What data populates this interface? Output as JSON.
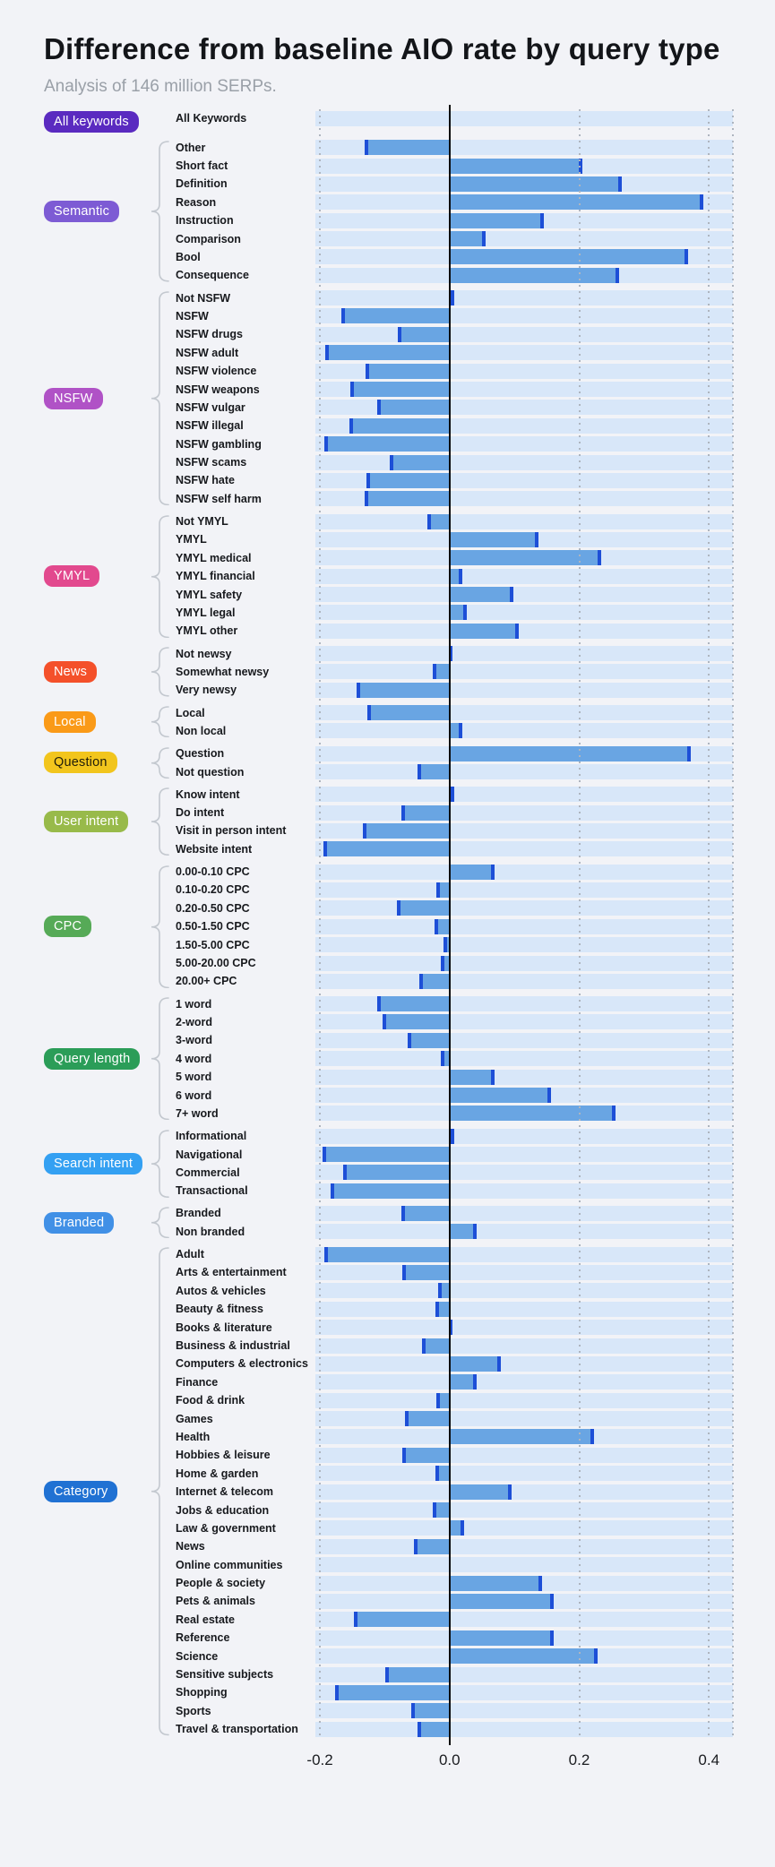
{
  "chart_data": {
    "type": "bar",
    "orientation": "horizontal",
    "title": "Difference from baseline AIO rate by query type",
    "subtitle": "Analysis of 146 million SERPs.",
    "axis": {
      "domain": [
        -0.207,
        0.437
      ],
      "ticks": [
        -0.2,
        0.0,
        0.2,
        0.4
      ],
      "tick_labels": [
        "-0.2",
        "0.0",
        "0.2",
        "0.4"
      ],
      "baseline": 0.0,
      "grid": "dotted-vertical"
    },
    "colors": {
      "background": "#f2f3f7",
      "track": "#d8e7f9",
      "bar": "#69a5e3",
      "bar_cap": "#1d4fd7",
      "baseline": "#0b0b0d",
      "gridline": "#aeb5bf",
      "brace": "#c3c8cf",
      "label_text": "#17191d"
    },
    "groups": [
      {
        "label": "All keywords",
        "badge_color": "#5a2ac0",
        "badge_text_color": "#ffffff",
        "rows": [
          {
            "label": "All Keywords",
            "value": 0.0
          }
        ]
      },
      {
        "label": "Semantic",
        "badge_color": "#7d5bd4",
        "badge_text_color": "#ffffff",
        "rows": [
          {
            "label": "Other",
            "value": -0.131
          },
          {
            "label": "Short fact",
            "value": 0.205
          },
          {
            "label": "Definition",
            "value": 0.266
          },
          {
            "label": "Reason",
            "value": 0.392
          },
          {
            "label": "Instruction",
            "value": 0.145
          },
          {
            "label": "Comparison",
            "value": 0.055
          },
          {
            "label": "Bool",
            "value": 0.368
          },
          {
            "label": "Consequence",
            "value": 0.262
          }
        ]
      },
      {
        "label": "NSFW",
        "badge_color": "#b052c6",
        "badge_text_color": "#ffffff",
        "rows": [
          {
            "label": "Not NSFW",
            "value": 0.007
          },
          {
            "label": "NSFW",
            "value": -0.167
          },
          {
            "label": "NSFW drugs",
            "value": -0.08
          },
          {
            "label": "NSFW adult",
            "value": -0.192
          },
          {
            "label": "NSFW violence",
            "value": -0.129
          },
          {
            "label": "NSFW weapons",
            "value": -0.153
          },
          {
            "label": "NSFW vulgar",
            "value": -0.112
          },
          {
            "label": "NSFW illegal",
            "value": -0.155
          },
          {
            "label": "NSFW gambling",
            "value": -0.193
          },
          {
            "label": "NSFW scams",
            "value": -0.092
          },
          {
            "label": "NSFW hate",
            "value": -0.128
          },
          {
            "label": "NSFW self harm",
            "value": -0.131
          }
        ]
      },
      {
        "label": "YMYL",
        "badge_color": "#e2498e",
        "badge_text_color": "#ffffff",
        "rows": [
          {
            "label": "Not YMYL",
            "value": -0.034
          },
          {
            "label": "YMYL",
            "value": 0.137
          },
          {
            "label": "YMYL medical",
            "value": 0.234
          },
          {
            "label": "YMYL financial",
            "value": 0.02
          },
          {
            "label": "YMYL safety",
            "value": 0.099
          },
          {
            "label": "YMYL legal",
            "value": 0.026
          },
          {
            "label": "YMYL other",
            "value": 0.107
          }
        ]
      },
      {
        "label": "News",
        "badge_color": "#f4502a",
        "badge_text_color": "#ffffff",
        "rows": [
          {
            "label": "Not newsy",
            "value": 0.005
          },
          {
            "label": "Somewhat newsy",
            "value": -0.026
          },
          {
            "label": "Very newsy",
            "value": -0.143
          }
        ]
      },
      {
        "label": "Local",
        "badge_color": "#fa9a18",
        "badge_text_color": "#ffffff",
        "rows": [
          {
            "label": "Local",
            "value": -0.127
          },
          {
            "label": "Non local",
            "value": 0.02
          }
        ]
      },
      {
        "label": "Question",
        "badge_color": "#f2c51d",
        "badge_text_color": "#201d0a",
        "rows": [
          {
            "label": "Question",
            "value": 0.372
          },
          {
            "label": "Not question",
            "value": -0.05
          }
        ]
      },
      {
        "label": "User intent",
        "badge_color": "#98ba4a",
        "badge_text_color": "#ffffff",
        "rows": [
          {
            "label": "Know intent",
            "value": 0.007
          },
          {
            "label": "Do intent",
            "value": -0.075
          },
          {
            "label": "Visit in person intent",
            "value": -0.134
          },
          {
            "label": "Website intent",
            "value": -0.195
          }
        ]
      },
      {
        "label": "CPC",
        "badge_color": "#56aa57",
        "badge_text_color": "#ffffff",
        "rows": [
          {
            "label": "0.00-0.10 CPC",
            "value": 0.069
          },
          {
            "label": "0.10-0.20 CPC",
            "value": -0.02
          },
          {
            "label": "0.20-0.50 CPC",
            "value": -0.081
          },
          {
            "label": "0.50-1.50 CPC",
            "value": -0.023
          },
          {
            "label": "1.50-5.00 CPC",
            "value": -0.01
          },
          {
            "label": "5.00-20.00 CPC",
            "value": -0.013
          },
          {
            "label": "20.00+ CPC",
            "value": -0.047
          }
        ]
      },
      {
        "label": "Query length",
        "badge_color": "#2b9d58",
        "badge_text_color": "#ffffff",
        "rows": [
          {
            "label": "1 word",
            "value": -0.111
          },
          {
            "label": "2-word",
            "value": -0.103
          },
          {
            "label": "3-word",
            "value": -0.065
          },
          {
            "label": "4 word",
            "value": -0.013
          },
          {
            "label": "5 word",
            "value": 0.069
          },
          {
            "label": "6 word",
            "value": 0.157
          },
          {
            "label": "7+ word",
            "value": 0.256
          }
        ]
      },
      {
        "label": "Search intent",
        "badge_color": "#34a0f2",
        "badge_text_color": "#ffffff",
        "rows": [
          {
            "label": "Informational",
            "value": 0.007
          },
          {
            "label": "Navigational",
            "value": -0.196
          },
          {
            "label": "Commercial",
            "value": -0.164
          },
          {
            "label": "Transactional",
            "value": -0.183
          }
        ]
      },
      {
        "label": "Branded",
        "badge_color": "#4190e6",
        "badge_text_color": "#ffffff",
        "rows": [
          {
            "label": "Branded",
            "value": -0.075
          },
          {
            "label": "Non branded",
            "value": 0.042
          }
        ]
      },
      {
        "label": "Category",
        "badge_color": "#2071d3",
        "badge_text_color": "#ffffff",
        "rows": [
          {
            "label": "Adult",
            "value": -0.193
          },
          {
            "label": "Arts & entertainment",
            "value": -0.073
          },
          {
            "label": "Autos & vehicles",
            "value": -0.017
          },
          {
            "label": "Beauty & fitness",
            "value": -0.022
          },
          {
            "label": "Books & literature",
            "value": 0.005
          },
          {
            "label": "Business & industrial",
            "value": -0.043
          },
          {
            "label": "Computers & electronics",
            "value": 0.079
          },
          {
            "label": "Finance",
            "value": 0.042
          },
          {
            "label": "Food & drink",
            "value": -0.02
          },
          {
            "label": "Games",
            "value": -0.069
          },
          {
            "label": "Health",
            "value": 0.223
          },
          {
            "label": "Hobbies & leisure",
            "value": -0.073
          },
          {
            "label": "Home & garden",
            "value": -0.022
          },
          {
            "label": "Internet & telecom",
            "value": 0.096
          },
          {
            "label": "Jobs & education",
            "value": -0.026
          },
          {
            "label": "Law & government",
            "value": 0.023
          },
          {
            "label": "News",
            "value": -0.055
          },
          {
            "label": "Online communities",
            "value": 0.0
          },
          {
            "label": "People & society",
            "value": 0.143
          },
          {
            "label": "Pets & animals",
            "value": 0.16
          },
          {
            "label": "Real estate",
            "value": -0.147
          },
          {
            "label": "Reference",
            "value": 0.16
          },
          {
            "label": "Science",
            "value": 0.228
          },
          {
            "label": "Sensitive subjects",
            "value": -0.099
          },
          {
            "label": "Shopping",
            "value": -0.176
          },
          {
            "label": "Sports",
            "value": -0.059
          },
          {
            "label": "Travel & transportation",
            "value": -0.05
          }
        ]
      }
    ]
  }
}
